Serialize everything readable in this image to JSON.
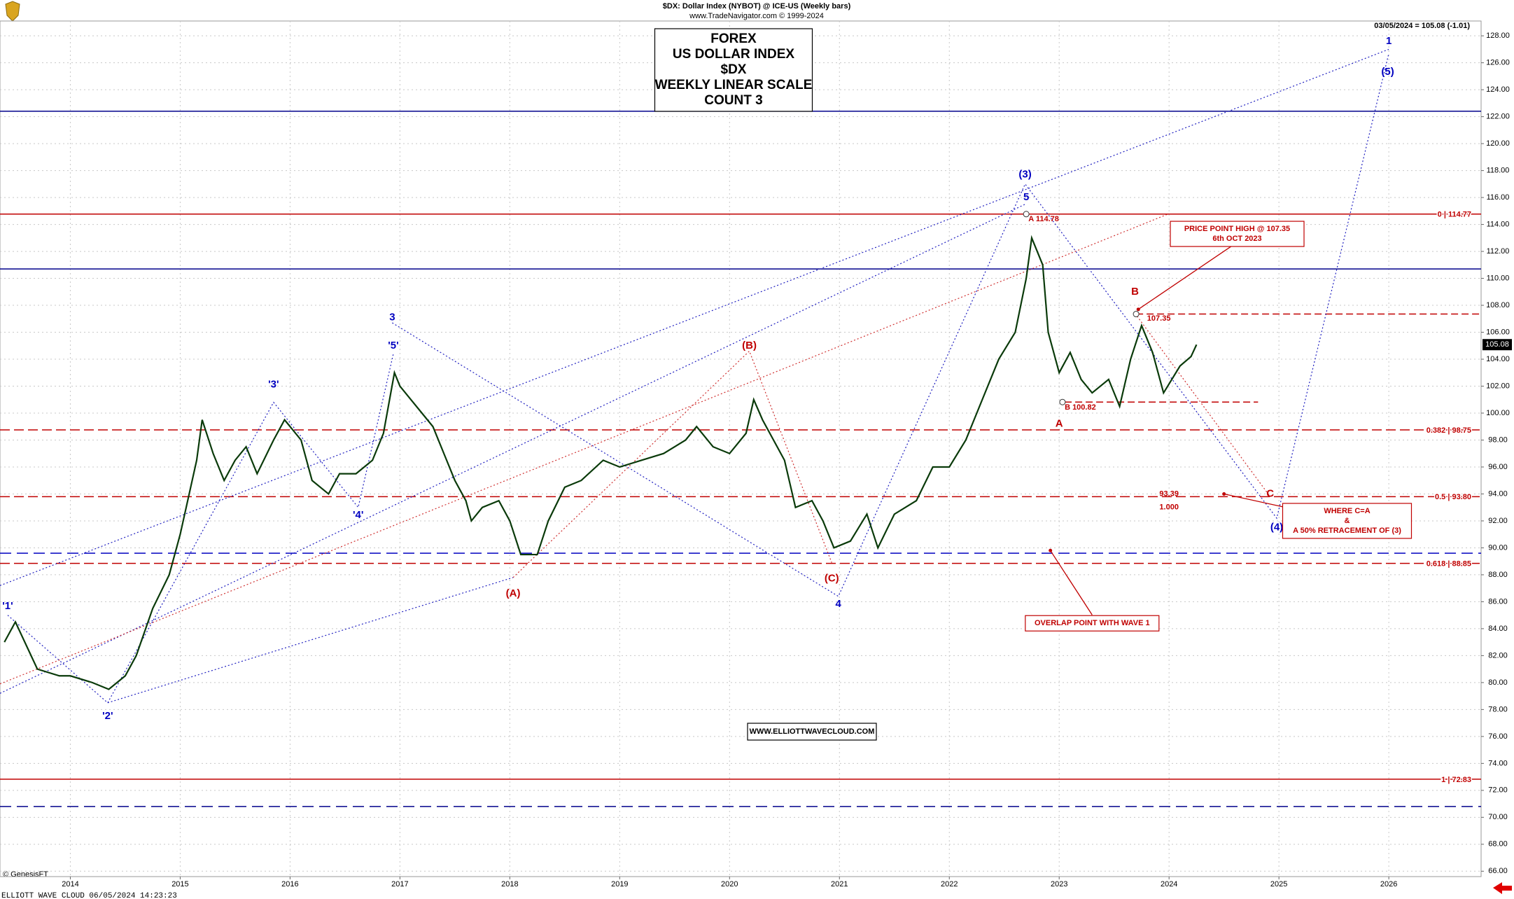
{
  "chart_data": {
    "type": "line",
    "title": "$DX:  Dollar Index (NYBOT) @ ICE-US  (Weekly bars)",
    "subtitle": "www.TradeNavigator.com © 1999-2024",
    "quote": "03/05/2024 = 105.08 (-1.01)",
    "title_box": [
      "FOREX",
      "US DOLLAR INDEX",
      "$DX",
      "WEEKLY LINEAR SCALE",
      "COUNT 3"
    ],
    "website": "WWW.ELLIOTTWAVECLOUD.COM",
    "footer": "ELLIOTT WAVE CLOUD   06/05/2024 14:23:23",
    "source": "© GenesisFT",
    "last_price": 105.08,
    "grid": true,
    "xlim": [
      2013.36,
      2026.84
    ],
    "ylim": [
      65.6,
      129.1
    ],
    "xticks": [
      2014,
      2015,
      2016,
      2017,
      2018,
      2019,
      2020,
      2021,
      2022,
      2023,
      2024,
      2025,
      2026
    ],
    "yticks": [
      {
        "value": 66,
        "label": "66.00"
      },
      {
        "value": 68,
        "label": "68.00"
      },
      {
        "value": 70,
        "label": "70.00"
      },
      {
        "value": 72,
        "label": "72.00"
      },
      {
        "value": 74,
        "label": "74.00"
      },
      {
        "value": 76,
        "label": "76.00"
      },
      {
        "value": 78,
        "label": "78.00"
      },
      {
        "value": 80,
        "label": "80.00"
      },
      {
        "value": 82,
        "label": "82.00"
      },
      {
        "value": 84,
        "label": "84.00"
      },
      {
        "value": 86,
        "label": "86.00"
      },
      {
        "value": 88,
        "label": "88.00"
      },
      {
        "value": 90,
        "label": "90.00"
      },
      {
        "value": 92,
        "label": "92.00"
      },
      {
        "value": 94,
        "label": "94.00"
      },
      {
        "value": 96,
        "label": "96.00"
      },
      {
        "value": 98,
        "label": "98.00"
      },
      {
        "value": 100,
        "label": "100.00"
      },
      {
        "value": 102,
        "label": "102.00"
      },
      {
        "value": 104,
        "label": "104.00"
      },
      {
        "value": 106,
        "label": "106.00"
      },
      {
        "value": 108,
        "label": "108.00"
      },
      {
        "value": 110,
        "label": "110.00"
      },
      {
        "value": 112,
        "label": "112.00"
      },
      {
        "value": 114,
        "label": "114.00"
      },
      {
        "value": 116,
        "label": "116.00"
      },
      {
        "value": 118,
        "label": "118.00"
      },
      {
        "value": 120,
        "label": "120.00"
      },
      {
        "value": 122,
        "label": "122.00"
      },
      {
        "value": 124,
        "label": "124.00"
      },
      {
        "value": 126,
        "label": "126.00"
      },
      {
        "value": 128,
        "label": "128.00"
      }
    ],
    "series": [
      {
        "name": "Dollar Index",
        "color": "#0a3a0a",
        "x": [
          2013.4,
          2013.5,
          2013.7,
          2013.9,
          2014.0,
          2014.2,
          2014.35,
          2014.5,
          2014.6,
          2014.75,
          2014.9,
          2015.0,
          2015.15,
          2015.2,
          2015.3,
          2015.4,
          2015.5,
          2015.6,
          2015.7,
          2015.85,
          2015.95,
          2016.1,
          2016.2,
          2016.35,
          2016.45,
          2016.6,
          2016.75,
          2016.85,
          2016.95,
          2017.0,
          2017.1,
          2017.2,
          2017.3,
          2017.4,
          2017.5,
          2017.6,
          2017.65,
          2017.75,
          2017.9,
          2018.0,
          2018.1,
          2018.25,
          2018.35,
          2018.5,
          2018.65,
          2018.85,
          2019.0,
          2019.2,
          2019.4,
          2019.6,
          2019.7,
          2019.85,
          2020.0,
          2020.15,
          2020.22,
          2020.3,
          2020.4,
          2020.5,
          2020.6,
          2020.75,
          2020.85,
          2020.95,
          2021.1,
          2021.25,
          2021.35,
          2021.5,
          2021.7,
          2021.85,
          2022.0,
          2022.15,
          2022.3,
          2022.45,
          2022.6,
          2022.7,
          2022.75,
          2022.8,
          2022.85,
          2022.9,
          2023.0,
          2023.1,
          2023.2,
          2023.3,
          2023.45,
          2023.55,
          2023.65,
          2023.75,
          2023.85,
          2023.95,
          2024.1,
          2024.2,
          2024.25
        ],
        "values": [
          83,
          84.5,
          81,
          80.5,
          80.5,
          80,
          79.5,
          80.5,
          82,
          85.5,
          88,
          91,
          96.5,
          99.5,
          97,
          95,
          96.5,
          97.5,
          95.5,
          98,
          99.5,
          98,
          95,
          94,
          95.5,
          95.5,
          96.5,
          98.5,
          103,
          102,
          101,
          100,
          99,
          97,
          95,
          93.5,
          92,
          93,
          93.5,
          92,
          89.5,
          89.5,
          92,
          94.5,
          95,
          96.5,
          96,
          96.5,
          97,
          98,
          99,
          97.5,
          97,
          98.5,
          101,
          99.5,
          98,
          96.5,
          93,
          93.5,
          92,
          90,
          90.5,
          92.5,
          90,
          92.5,
          93.5,
          96,
          96,
          98,
          101,
          104,
          106,
          110,
          113,
          112,
          111,
          106,
          103,
          104.5,
          102.5,
          101.5,
          102.5,
          100.5,
          104,
          106.5,
          104.5,
          101.5,
          103.5,
          104.2,
          105.08
        ]
      }
    ],
    "levels": [
      {
        "value": 122.4,
        "color": "#00008b"
      },
      {
        "value": 110.7,
        "color": "#00008b"
      },
      {
        "value": 114.77,
        "color": "#c00000",
        "label": "0 | 114.77"
      },
      {
        "value": 107.35,
        "color": "#c00000"
      },
      {
        "value": 100.82,
        "color": "#c00000"
      },
      {
        "value": 98.75,
        "color": "#c00000",
        "label": "0.382 | 98.75"
      },
      {
        "value": 93.8,
        "color": "#c00000",
        "label": "0.5 | 93.80"
      },
      {
        "value": 88.85,
        "color": "#c00000",
        "label": "0.618 | 88.85"
      },
      {
        "value": 89.6,
        "color": "#0000c0"
      },
      {
        "value": 72.83,
        "color": "#c00000",
        "label": "1 | 72.83"
      },
      {
        "value": 70.8,
        "color": "#00008b"
      }
    ],
    "wave_labels": [
      {
        "text": "'1'",
        "color": "#0000c0"
      },
      {
        "text": "'2'",
        "color": "#0000c0"
      },
      {
        "text": "'3'",
        "color": "#0000c0"
      },
      {
        "text": "'4'",
        "color": "#0000c0"
      },
      {
        "text": "'5'",
        "color": "#0000c0"
      },
      {
        "text": "3",
        "color": "#0000c0"
      },
      {
        "text": "(A)",
        "color": "#c00000"
      },
      {
        "text": "(B)",
        "color": "#c00000"
      },
      {
        "text": "(C)",
        "color": "#c00000"
      },
      {
        "text": "4",
        "color": "#0000c0"
      },
      {
        "text": "(3)",
        "color": "#0000c0"
      },
      {
        "text": "5",
        "color": "#0000c0"
      },
      {
        "text": "A",
        "color": "#c00000"
      },
      {
        "text": "B",
        "color": "#c00000"
      },
      {
        "text": "C",
        "color": "#c00000"
      },
      {
        "text": "(4)",
        "color": "#0000c0"
      },
      {
        "text": "(5)",
        "color": "#0000c0"
      },
      {
        "text": "1",
        "color": "#0000c0"
      }
    ],
    "point_labels": [
      "A 114.78",
      "B 100.82",
      "107.35",
      "93.39",
      "1.000"
    ],
    "annotations": [
      [
        "PRICE POINT HIGH @ 107.35",
        "6th OCT 2023"
      ],
      [
        "WHERE C=A",
        "&",
        "A 50% RETRACEMENT OF (3)"
      ],
      [
        "OVERLAP POINT WITH WAVE 1"
      ]
    ]
  }
}
